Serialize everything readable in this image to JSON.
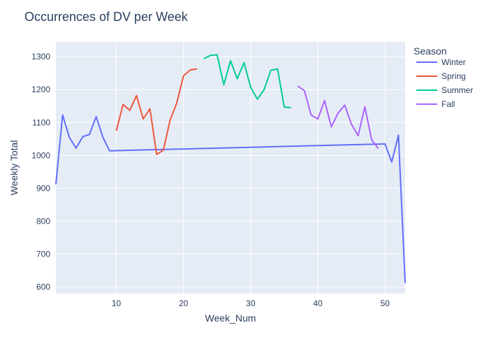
{
  "chart_data": {
    "type": "line",
    "title": "Occurrences of DV per Week",
    "xlabel": "Week_Num",
    "ylabel": "Weekly Total",
    "xlim": [
      1,
      53
    ],
    "ylim": [
      580,
      1345
    ],
    "x_ticks": [
      10,
      20,
      30,
      40,
      50
    ],
    "y_ticks": [
      600,
      700,
      800,
      900,
      1000,
      1100,
      1200,
      1300
    ],
    "grid": true,
    "legend": {
      "title": "Season",
      "position": "right"
    },
    "series": [
      {
        "name": "Winter",
        "color": "#636efa",
        "x": [
          1,
          2,
          3,
          4,
          5,
          6,
          7,
          8,
          9,
          50,
          51,
          52,
          53
        ],
        "y": [
          912,
          1123,
          1055,
          1022,
          1057,
          1064,
          1118,
          1055,
          1014,
          1035,
          980,
          1062,
          612
        ]
      },
      {
        "name": "Spring",
        "color": "#ef553b",
        "x": [
          10,
          11,
          12,
          13,
          14,
          15,
          16,
          17,
          18,
          19,
          20,
          21,
          22
        ],
        "y": [
          1075,
          1155,
          1137,
          1182,
          1111,
          1142,
          1003,
          1016,
          1107,
          1160,
          1242,
          1260,
          1263
        ]
      },
      {
        "name": "Summer",
        "color": "#00cc96",
        "x": [
          23,
          24,
          25,
          26,
          27,
          28,
          29,
          30,
          31,
          32,
          33,
          34,
          35,
          36
        ],
        "y": [
          1294,
          1304,
          1306,
          1215,
          1288,
          1233,
          1282,
          1207,
          1171,
          1200,
          1259,
          1263,
          1147,
          1145
        ]
      },
      {
        "name": "Fall",
        "color": "#ab63fa",
        "x": [
          37,
          38,
          39,
          40,
          41,
          42,
          43,
          44,
          45,
          46,
          47,
          48,
          49
        ],
        "y": [
          1211,
          1197,
          1123,
          1111,
          1167,
          1087,
          1128,
          1153,
          1095,
          1060,
          1148,
          1048,
          1021
        ]
      }
    ]
  }
}
